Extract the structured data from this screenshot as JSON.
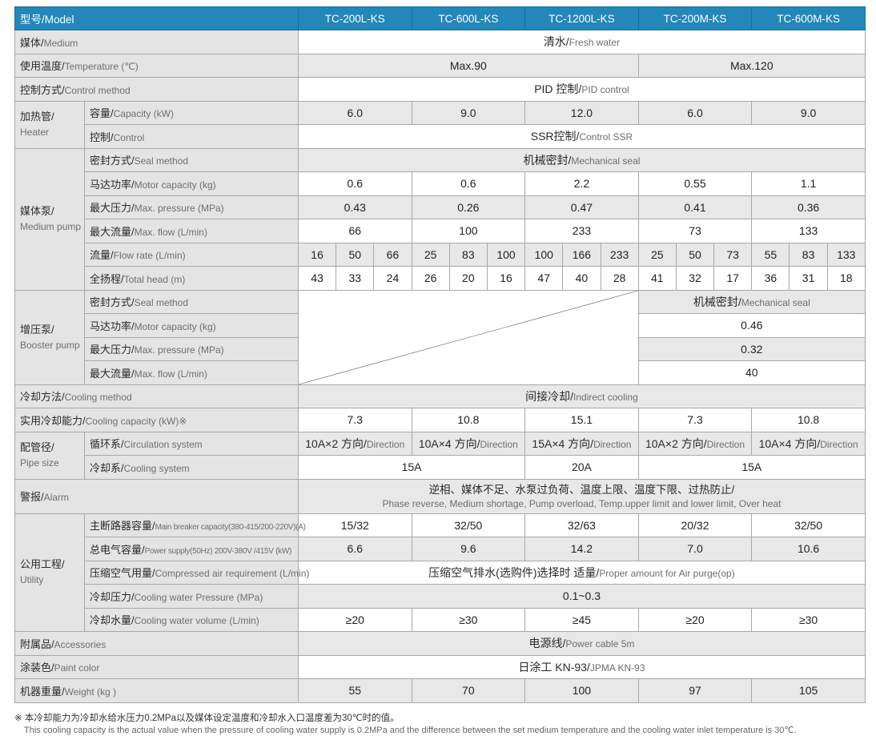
{
  "header": {
    "label": "型号/Model",
    "models": [
      "TC-200L-KS",
      "TC-600L-KS",
      "TC-1200L-KS",
      "TC-200M-KS",
      "TC-600M-KS"
    ],
    "color": "#2387b9"
  },
  "sections": [
    {
      "zh": "媒体/",
      "en": "Medium",
      "cells": [
        {
          "span": 5,
          "zh": "清水/",
          "en": "Fresh water"
        }
      ]
    },
    {
      "zh": "使用温度/",
      "en": "Temperature (℃)",
      "cells": [
        {
          "span": 3,
          "text": "Max.90"
        },
        {
          "span": 2,
          "text": "Max.120"
        }
      ]
    },
    {
      "zh": "控制方式/",
      "en": "Control method",
      "cells": [
        {
          "span": 5,
          "zh": "PID 控制/",
          "en": "PID control"
        }
      ]
    },
    {
      "group": {
        "zh": "加热管/",
        "en": "Heater"
      },
      "rows": [
        {
          "zh": "容量/",
          "en": "Capacity (kW)",
          "cells": [
            {
              "span": 1,
              "text": "6.0"
            },
            {
              "span": 1,
              "text": "9.0"
            },
            {
              "span": 1,
              "text": "12.0"
            },
            {
              "span": 1,
              "text": "6.0"
            },
            {
              "span": 1,
              "text": "9.0"
            }
          ]
        },
        {
          "zh": "控制/",
          "en": "Control",
          "cells": [
            {
              "span": 5,
              "zh": "SSR控制/",
              "en": "Control  SSR"
            }
          ]
        }
      ]
    },
    {
      "group": {
        "zh": "媒体泵/",
        "en": "Medium pump"
      },
      "rows": [
        {
          "zh": "密封方式/",
          "en": "Seal method",
          "cells": [
            {
              "span": 5,
              "zh": "机械密封/",
              "en": "Mechanical seal"
            }
          ]
        },
        {
          "zh": "马达功率/",
          "en": "Motor capacity (kg)",
          "cells": [
            {
              "span": 1,
              "text": "0.6"
            },
            {
              "span": 1,
              "text": "0.6"
            },
            {
              "span": 1,
              "text": "2.2"
            },
            {
              "span": 1,
              "text": "0.55"
            },
            {
              "span": 1,
              "text": "1.1"
            }
          ]
        },
        {
          "zh": "最大压力/",
          "en": "Max. pressure (MPa)",
          "cells": [
            {
              "span": 1,
              "text": "0.43"
            },
            {
              "span": 1,
              "text": "0.26"
            },
            {
              "span": 1,
              "text": "0.47"
            },
            {
              "span": 1,
              "text": "0.41"
            },
            {
              "span": 1,
              "text": "0.36"
            }
          ]
        },
        {
          "zh": "最大流量/",
          "en": "Max. flow (L/min)",
          "cells": [
            {
              "span": 1,
              "text": "66"
            },
            {
              "span": 1,
              "text": "100"
            },
            {
              "span": 1,
              "text": "233"
            },
            {
              "span": 1,
              "text": "73"
            },
            {
              "span": 1,
              "text": "133"
            }
          ]
        },
        {
          "zh": "流量/",
          "en": "Flow rate (L/min)",
          "sub": [
            [
              "16",
              "50",
              "66"
            ],
            [
              "25",
              "83",
              "100"
            ],
            [
              "100",
              "166",
              "233"
            ],
            [
              "25",
              "50",
              "73"
            ],
            [
              "55",
              "83",
              "133"
            ]
          ]
        },
        {
          "zh": "全扬程/",
          "en": "Total head (m)",
          "sub": [
            [
              "43",
              "33",
              "24"
            ],
            [
              "26",
              "20",
              "16"
            ],
            [
              "47",
              "40",
              "28"
            ],
            [
              "41",
              "32",
              "17"
            ],
            [
              "36",
              "31",
              "18"
            ]
          ]
        }
      ]
    },
    {
      "group": {
        "zh": "增压泵/",
        "en": "Booster pump"
      },
      "blank_models": 3,
      "rows": [
        {
          "zh": "密封方式/",
          "en": "Seal method",
          "cells": [
            {
              "span": 2,
              "zh": "机械密封/",
              "en": "Mechanical seal"
            }
          ]
        },
        {
          "zh": "马达功率/",
          "en": "Motor capacity (kg)",
          "cells": [
            {
              "span": 2,
              "text": "0.46"
            }
          ]
        },
        {
          "zh": "最大压力/",
          "en": "Max. pressure (MPa)",
          "cells": [
            {
              "span": 2,
              "text": "0.32"
            }
          ]
        },
        {
          "zh": "最大流量/",
          "en": "Max. flow (L/min)",
          "cells": [
            {
              "span": 2,
              "text": "40"
            }
          ]
        }
      ]
    },
    {
      "zh": "冷却方法/",
      "en": "Cooling method",
      "cells": [
        {
          "span": 5,
          "zh": "间接冷却/",
          "en": "Indirect cooling"
        }
      ]
    },
    {
      "zh": "实用冷却能力/",
      "en": "Cooling capacity (kW)※",
      "cells": [
        {
          "span": 1,
          "text": "7.3"
        },
        {
          "span": 1,
          "text": "10.8"
        },
        {
          "span": 1,
          "text": "15.1"
        },
        {
          "span": 1,
          "text": "7.3"
        },
        {
          "span": 1,
          "text": "10.8"
        }
      ]
    },
    {
      "group": {
        "zh": "配管径/",
        "en": "Pipe size"
      },
      "rows": [
        {
          "zh": "循环系/",
          "en": "Circulation system",
          "cells": [
            {
              "span": 1,
              "zh": "10A×2 方向/",
              "en": "Direction"
            },
            {
              "span": 1,
              "zh": "10A×4 方向/",
              "en": "Direction"
            },
            {
              "span": 1,
              "zh": "15A×4 方向/",
              "en": "Direction"
            },
            {
              "span": 1,
              "zh": "10A×2 方向/",
              "en": "Direction"
            },
            {
              "span": 1,
              "zh": "10A×4 方向/",
              "en": "Direction"
            }
          ]
        },
        {
          "zh": "冷却系/",
          "en": "Cooling system",
          "cells": [
            {
              "span": 2,
              "text": "15A"
            },
            {
              "span": 1,
              "text": "20A"
            },
            {
              "span": 2,
              "text": "15A"
            }
          ]
        }
      ]
    },
    {
      "zh": "警报/",
      "en": "Alarm",
      "tall": true,
      "cells": [
        {
          "span": 5,
          "alarm": true,
          "zh": "逆相、媒体不足、水泵过负荷、温度上限、温度下限、过热防止/",
          "en": "Phase reverse, Medium shortage, Pump overload, Temp.upper limit and lower limit, Over heat"
        }
      ]
    },
    {
      "group": {
        "zh": "公用工程/",
        "en": "Utility"
      },
      "rows": [
        {
          "zh": "主断路器容量/",
          "en": "Main breaker capacity(380-415/200-220V)(A)",
          "small": true,
          "cells": [
            {
              "span": 1,
              "text": "15/32"
            },
            {
              "span": 1,
              "text": "32/50"
            },
            {
              "span": 1,
              "text": "32/63"
            },
            {
              "span": 1,
              "text": "20/32"
            },
            {
              "span": 1,
              "text": "32/50"
            }
          ]
        },
        {
          "zh": "总电气容量/",
          "en": "Power supply(50Hz) 200V-380V /415V (kW)",
          "small": true,
          "cells": [
            {
              "span": 1,
              "text": "6.6"
            },
            {
              "span": 1,
              "text": "9.6"
            },
            {
              "span": 1,
              "text": "14.2"
            },
            {
              "span": 1,
              "text": "7.0"
            },
            {
              "span": 1,
              "text": "10.6"
            }
          ]
        },
        {
          "zh": "压缩空气用量/",
          "en": "Compressed air requirement (L/min)",
          "cells": [
            {
              "span": 5,
              "zh": "压缩空气排水(选购件)选择时  适量/",
              "en": "Proper amount for Air purge(op)"
            }
          ]
        },
        {
          "zh": "冷却压力/",
          "en": "Cooling water Pressure (MPa)",
          "cells": [
            {
              "span": 5,
              "text": "0.1~0.3"
            }
          ]
        },
        {
          "zh": "冷却水量/",
          "en": "Cooling water volume (L/min)",
          "cells": [
            {
              "span": 1,
              "text": "≥20"
            },
            {
              "span": 1,
              "text": "≥30"
            },
            {
              "span": 1,
              "text": "≥45"
            },
            {
              "span": 1,
              "text": "≥20"
            },
            {
              "span": 1,
              "text": "≥30"
            }
          ]
        }
      ]
    },
    {
      "zh": "附属品/",
      "en": "Accessories",
      "cells": [
        {
          "span": 5,
          "zh": "电源线/",
          "en": "Power cable 5m"
        }
      ]
    },
    {
      "zh": "涂装色/",
      "en": "Paint color",
      "cells": [
        {
          "span": 5,
          "zh": "日涂工 KN-93/",
          "en": "JPMA KN-93"
        }
      ]
    },
    {
      "zh": "机器重量/",
      "en": "Weight (kg )",
      "cells": [
        {
          "span": 1,
          "text": "55"
        },
        {
          "span": 1,
          "text": "70"
        },
        {
          "span": 1,
          "text": "100"
        },
        {
          "span": 1,
          "text": "97"
        },
        {
          "span": 1,
          "text": "105"
        }
      ]
    }
  ],
  "footnote": {
    "zh": "※ 本冷却能力为冷却水给水压力0.2MPa以及媒体设定温度和冷却水入口温度差为30℃时的值。",
    "en": "This cooling capacity is the actual value when the pressure of cooling water supply is 0.2MPa and the difference between the set medium temperature and the cooling water inlet temperature is 30℃."
  }
}
